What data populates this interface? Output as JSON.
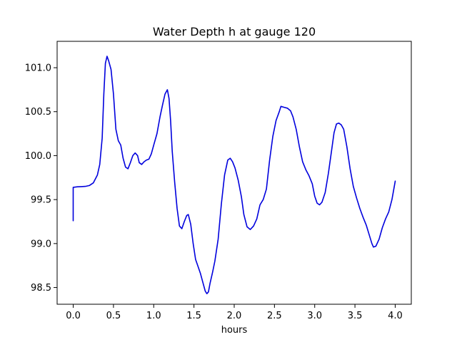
{
  "chart_data": {
    "type": "line",
    "title": "Water Depth h at gauge 120",
    "xlabel": "hours",
    "ylabel": "",
    "xlim": [
      -0.2,
      4.2
    ],
    "ylim": [
      98.31,
      101.3
    ],
    "xticks": [
      0.0,
      0.5,
      1.0,
      1.5,
      2.0,
      2.5,
      3.0,
      3.5,
      4.0
    ],
    "xtick_labels": [
      "0.0",
      "0.5",
      "1.0",
      "1.5",
      "2.0",
      "2.5",
      "3.0",
      "3.5",
      "4.0"
    ],
    "yticks": [
      98.5,
      99.0,
      99.5,
      100.0,
      100.5,
      101.0
    ],
    "ytick_labels": [
      "98.5",
      "99.0",
      "99.5",
      "100.0",
      "100.5",
      "101.0"
    ],
    "grid": false,
    "series": [
      {
        "name": "",
        "color": "#0000dd",
        "x": [
          0.0,
          0.0,
          0.05,
          0.1,
          0.15,
          0.2,
          0.25,
          0.3,
          0.33,
          0.36,
          0.38,
          0.4,
          0.42,
          0.44,
          0.47,
          0.5,
          0.53,
          0.56,
          0.59,
          0.62,
          0.65,
          0.68,
          0.71,
          0.74,
          0.77,
          0.8,
          0.82,
          0.85,
          0.88,
          0.91,
          0.94,
          0.97,
          1.0,
          1.04,
          1.08,
          1.11,
          1.14,
          1.17,
          1.19,
          1.21,
          1.23,
          1.26,
          1.29,
          1.32,
          1.35,
          1.38,
          1.41,
          1.43,
          1.46,
          1.49,
          1.52,
          1.55,
          1.58,
          1.61,
          1.64,
          1.66,
          1.68,
          1.7,
          1.73,
          1.76,
          1.8,
          1.84,
          1.88,
          1.92,
          1.95,
          1.98,
          2.01,
          2.05,
          2.09,
          2.12,
          2.16,
          2.2,
          2.24,
          2.28,
          2.32,
          2.36,
          2.4,
          2.44,
          2.48,
          2.52,
          2.56,
          2.58,
          2.62,
          2.66,
          2.7,
          2.73,
          2.77,
          2.81,
          2.85,
          2.89,
          2.93,
          2.97,
          3.0,
          3.03,
          3.06,
          3.09,
          3.13,
          3.17,
          3.21,
          3.24,
          3.27,
          3.3,
          3.33,
          3.36,
          3.4,
          3.44,
          3.48,
          3.52,
          3.56,
          3.6,
          3.64,
          3.68,
          3.71,
          3.73,
          3.76,
          3.8,
          3.84,
          3.88,
          3.92,
          3.96,
          4.0
        ],
        "y": [
          99.26,
          99.64,
          99.645,
          99.648,
          99.65,
          99.66,
          99.69,
          99.78,
          99.9,
          100.2,
          100.7,
          101.05,
          101.13,
          101.08,
          100.98,
          100.7,
          100.3,
          100.17,
          100.12,
          99.97,
          99.87,
          99.85,
          99.92,
          100.0,
          100.03,
          100.0,
          99.92,
          99.9,
          99.93,
          99.95,
          99.96,
          100.02,
          100.12,
          100.25,
          100.45,
          100.58,
          100.7,
          100.75,
          100.65,
          100.4,
          100.05,
          99.7,
          99.4,
          99.2,
          99.17,
          99.25,
          99.32,
          99.33,
          99.22,
          99.0,
          98.82,
          98.74,
          98.66,
          98.56,
          98.46,
          98.43,
          98.45,
          98.55,
          98.67,
          98.8,
          99.05,
          99.45,
          99.78,
          99.95,
          99.97,
          99.93,
          99.86,
          99.72,
          99.53,
          99.33,
          99.19,
          99.16,
          99.2,
          99.28,
          99.44,
          99.5,
          99.62,
          99.95,
          100.22,
          100.4,
          100.5,
          100.56,
          100.55,
          100.54,
          100.51,
          100.44,
          100.3,
          100.1,
          99.93,
          99.84,
          99.77,
          99.68,
          99.54,
          99.46,
          99.44,
          99.47,
          99.58,
          99.8,
          100.06,
          100.26,
          100.36,
          100.37,
          100.35,
          100.3,
          100.1,
          99.85,
          99.65,
          99.52,
          99.4,
          99.3,
          99.21,
          99.09,
          99.0,
          98.96,
          98.97,
          99.05,
          99.18,
          99.28,
          99.36,
          99.5,
          99.71
        ]
      }
    ]
  }
}
